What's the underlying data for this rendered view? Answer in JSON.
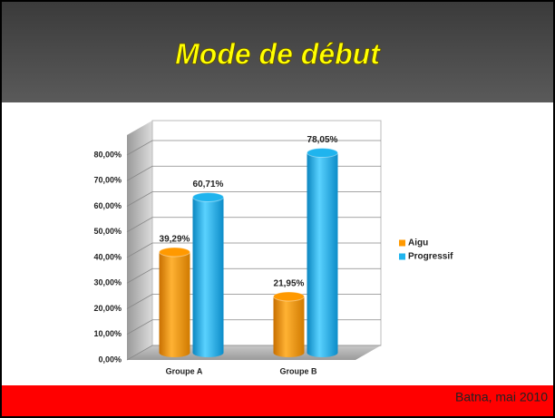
{
  "slide": {
    "title": "Mode de début",
    "footer": "Batna, mai 2010"
  },
  "chart_data": {
    "type": "bar",
    "categories": [
      "Groupe A",
      "Groupe B"
    ],
    "series": [
      {
        "name": "Aigu",
        "color": "#ff9900",
        "values": [
          39.29,
          21.95
        ],
        "value_labels": [
          "39,29%",
          "21,95%"
        ]
      },
      {
        "name": "Progressif",
        "color": "#1fb4ee",
        "values": [
          60.71,
          78.05
        ],
        "value_labels": [
          "60,71%",
          "78,05%"
        ]
      }
    ],
    "ylim": [
      0,
      80
    ],
    "yticks": [
      {
        "value": 0,
        "label": "0,00%"
      },
      {
        "value": 10,
        "label": "10,00%"
      },
      {
        "value": 20,
        "label": "20,00%"
      },
      {
        "value": 30,
        "label": "30,00%"
      },
      {
        "value": 40,
        "label": "40,00%"
      },
      {
        "value": 50,
        "label": "50,00%"
      },
      {
        "value": 60,
        "label": "60,00%"
      },
      {
        "value": 70,
        "label": "70,00%"
      },
      {
        "value": 80,
        "label": "80,00%"
      }
    ],
    "grid": true,
    "legend": "right"
  }
}
